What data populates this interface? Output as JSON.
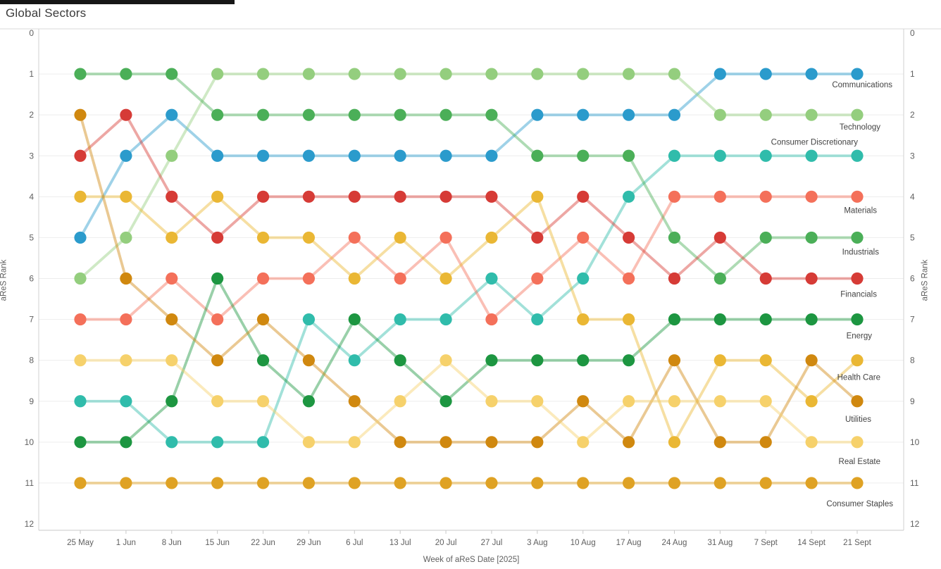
{
  "title": "Global Sectors",
  "chart_data": {
    "type": "line",
    "subtype": "bump-rank-chart",
    "title": "Global Sectors",
    "xlabel": "Week of aReS Date [2025]",
    "ylabel_left": "aReS Rank",
    "ylabel_right": "aReS Rank",
    "ylim": [
      0,
      12
    ],
    "y_ticks": [
      0,
      1,
      2,
      3,
      4,
      5,
      6,
      7,
      8,
      9,
      10,
      11,
      12
    ],
    "grid": "horizontal",
    "legend_position": "inline-right-labels",
    "categories": [
      "25 May",
      "1 Jun",
      "8 Jun",
      "15 Jun",
      "22 Jun",
      "29 Jun",
      "6 Jul",
      "13 Jul",
      "20 Jul",
      "27 Jul",
      "3 Aug",
      "10 Aug",
      "17 Aug",
      "24 Aug",
      "31 Aug",
      "7 Sept",
      "14 Sept",
      "21 Sept"
    ],
    "series": [
      {
        "name": "Communications",
        "color": "#2b9bcc",
        "ranks": [
          5,
          3,
          2,
          3,
          3,
          3,
          3,
          3,
          3,
          3,
          2,
          2,
          2,
          2,
          1,
          1,
          1,
          1
        ]
      },
      {
        "name": "Technology",
        "color": "#94ce7e",
        "ranks": [
          6,
          5,
          3,
          1,
          1,
          1,
          1,
          1,
          1,
          1,
          1,
          1,
          1,
          1,
          2,
          2,
          2,
          2
        ]
      },
      {
        "name": "Consumer Discretionary",
        "color": "#30bcab",
        "ranks": [
          9,
          9,
          10,
          10,
          10,
          7,
          8,
          7,
          7,
          6,
          7,
          6,
          4,
          3,
          3,
          3,
          3,
          3
        ]
      },
      {
        "name": "Materials",
        "color": "#f4705a",
        "ranks": [
          7,
          7,
          6,
          7,
          6,
          6,
          5,
          6,
          5,
          7,
          6,
          5,
          6,
          4,
          4,
          4,
          4,
          4
        ]
      },
      {
        "name": "Industrials",
        "color": "#4baf58",
        "ranks": [
          1,
          1,
          1,
          2,
          2,
          2,
          2,
          2,
          2,
          2,
          3,
          3,
          3,
          5,
          6,
          5,
          5,
          5
        ]
      },
      {
        "name": "Financials",
        "color": "#d63b36",
        "ranks": [
          3,
          2,
          4,
          5,
          4,
          4,
          4,
          4,
          4,
          4,
          5,
          4,
          5,
          6,
          5,
          6,
          6,
          6
        ]
      },
      {
        "name": "Energy",
        "color": "#1d9641",
        "ranks": [
          10,
          10,
          9,
          6,
          8,
          9,
          7,
          8,
          9,
          8,
          8,
          8,
          8,
          7,
          7,
          7,
          7,
          7
        ]
      },
      {
        "name": "Health Care",
        "color": "#eab734",
        "ranks": [
          4,
          4,
          5,
          4,
          5,
          5,
          6,
          5,
          6,
          5,
          4,
          7,
          7,
          10,
          8,
          8,
          9,
          8
        ]
      },
      {
        "name": "Utilities",
        "color": "#d0880f",
        "ranks": [
          2,
          6,
          7,
          8,
          7,
          8,
          9,
          10,
          10,
          10,
          10,
          9,
          10,
          8,
          10,
          10,
          8,
          9
        ]
      },
      {
        "name": "Real Estate",
        "color": "#f6d16b",
        "ranks": [
          8,
          8,
          8,
          9,
          9,
          10,
          10,
          9,
          8,
          9,
          9,
          10,
          9,
          9,
          9,
          9,
          10,
          10
        ]
      },
      {
        "name": "Consumer Staples",
        "color": "#dfa224",
        "ranks": [
          11,
          11,
          11,
          11,
          11,
          11,
          11,
          11,
          11,
          11,
          11,
          11,
          11,
          11,
          11,
          11,
          11,
          11
        ]
      }
    ]
  }
}
